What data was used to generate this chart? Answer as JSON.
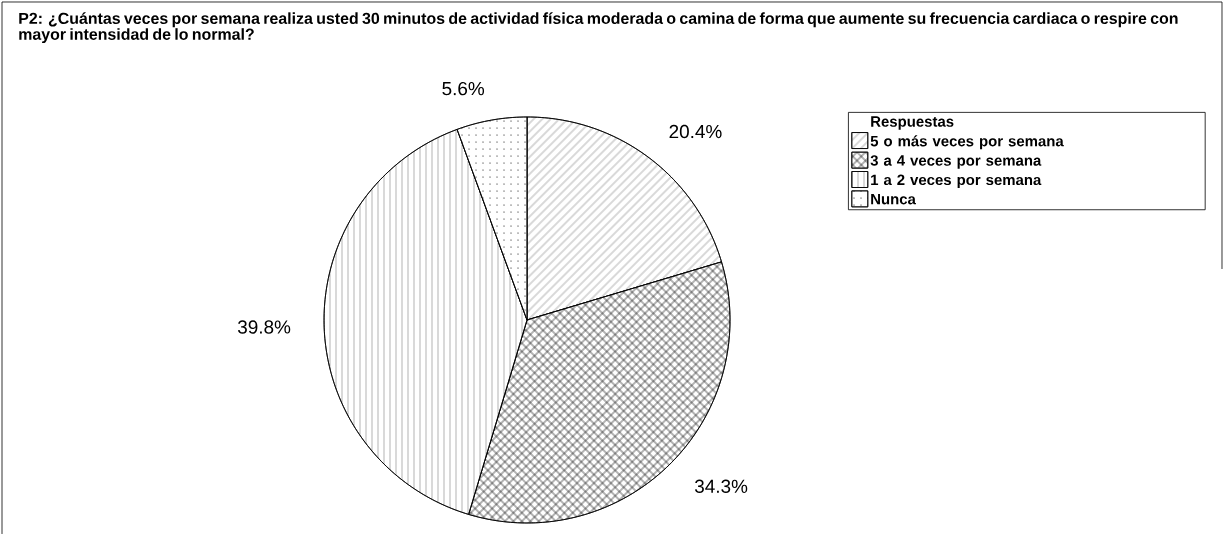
{
  "chart_data": {
    "type": "pie",
    "title": "P2: ¿Cuántas veces por semana realiza usted 30 minutos de actividad física moderada o camina de forma que aumente su frecuencia cardiaca o respire con mayor intensidad de lo normal?",
    "legend_title": "Respuestas",
    "categories": [
      "5 o más veces por semana",
      "3 a 4 veces por semana",
      "1 a 2 veces por semana",
      "Nunca"
    ],
    "values": [
      20.4,
      34.3,
      39.8,
      5.6
    ],
    "value_labels": [
      "20.4%",
      "34.3%",
      "39.8%",
      "5.6%"
    ],
    "colors": [
      "#000000",
      "#000000",
      "#000000",
      "#000000"
    ],
    "legend": "top right"
  }
}
